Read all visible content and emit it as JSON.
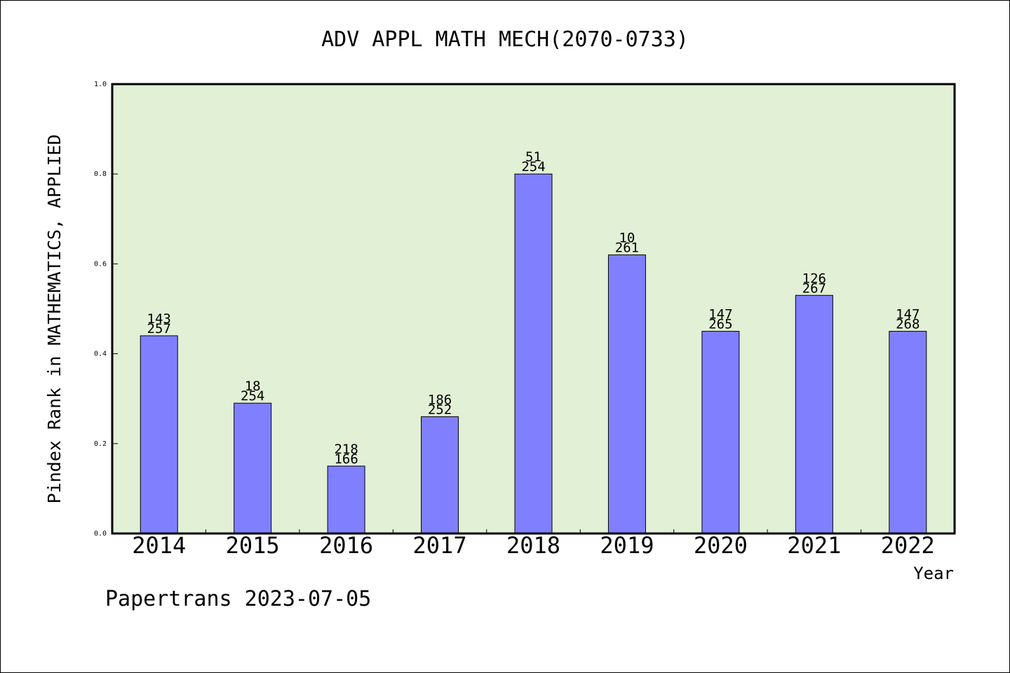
{
  "chart_data": {
    "type": "bar",
    "title": "ADV APPL MATH MECH(2070-0733)",
    "xlabel": "Year",
    "ylabel": "Pindex Rank in MATHEMATICS, APPLIED",
    "ylim": [
      0,
      1.0
    ],
    "yticks": [
      "0.0",
      "0.2",
      "0.4",
      "0.6",
      "0.8",
      "1.0"
    ],
    "grid": false,
    "categories": [
      "2014",
      "2015",
      "2016",
      "2017",
      "2018",
      "2019",
      "2020",
      "2021",
      "2022"
    ],
    "values": [
      0.44,
      0.29,
      0.15,
      0.26,
      0.8,
      0.62,
      0.45,
      0.53,
      0.45
    ],
    "labels_top": [
      "143",
      "18",
      "218",
      "186",
      "51",
      "10",
      "147",
      "126",
      "147"
    ],
    "labels_bottom": [
      "257",
      "254",
      "166",
      "252",
      "254",
      "261",
      "265",
      "267",
      "268"
    ],
    "colors": {
      "bar": "#8080ff",
      "plot_background": "#e2f0d6",
      "axis": "#000000"
    }
  },
  "footer": {
    "credit": "Papertrans 2023-07-05"
  }
}
